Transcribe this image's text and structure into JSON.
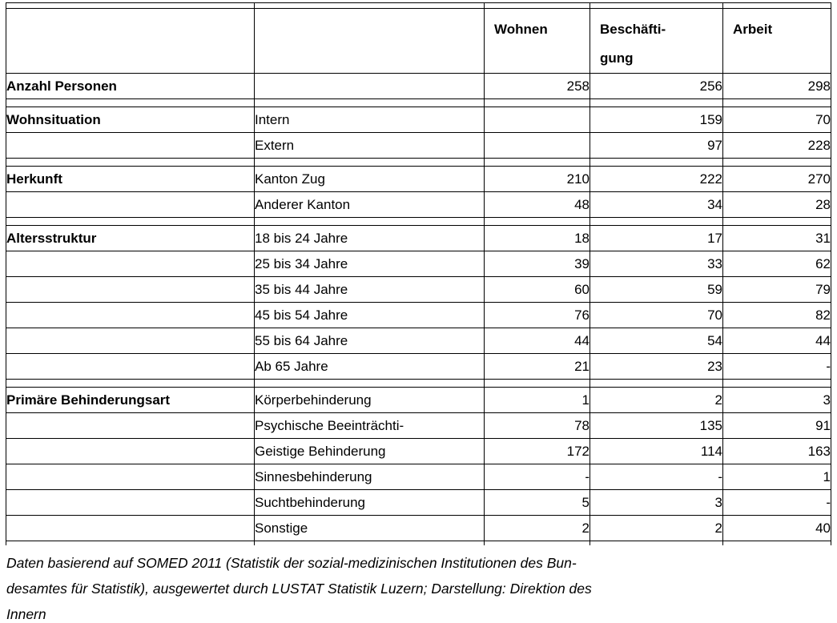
{
  "document": {
    "background_color": "#ffffff",
    "text_color": "#000000",
    "border_color": "#000000"
  },
  "table": {
    "header": {
      "col1": "",
      "col2": "",
      "col3": "Wohnen",
      "col4": "Beschäfti-\ngung",
      "col5": "Arbeit"
    },
    "rows": [
      {
        "type": "spacer-top"
      },
      {
        "type": "header"
      },
      {
        "type": "data",
        "label": "Anzahl Personen",
        "category": "",
        "wohnen": "258",
        "beschaeftigung": "256",
        "arbeit": "298"
      },
      {
        "type": "spacer"
      },
      {
        "type": "data",
        "label": "Wohnsituation",
        "category": "Intern",
        "wohnen": "",
        "beschaeftigung": "159",
        "arbeit": "70"
      },
      {
        "type": "data",
        "label": "",
        "category": "Extern",
        "wohnen": "",
        "beschaeftigung": "97",
        "arbeit": "228"
      },
      {
        "type": "spacer"
      },
      {
        "type": "data",
        "label": "Herkunft",
        "category": "Kanton Zug",
        "wohnen": "210",
        "beschaeftigung": "222",
        "arbeit": "270"
      },
      {
        "type": "data",
        "label": "",
        "category": "Anderer Kanton",
        "wohnen": "48",
        "beschaeftigung": "34",
        "arbeit": "28"
      },
      {
        "type": "spacer"
      },
      {
        "type": "data",
        "label": "Altersstruktur",
        "category": "18 bis 24 Jahre",
        "wohnen": "18",
        "beschaeftigung": "17",
        "arbeit": "31"
      },
      {
        "type": "data",
        "label": "",
        "category": "25 bis 34 Jahre",
        "wohnen": "39",
        "beschaeftigung": "33",
        "arbeit": "62"
      },
      {
        "type": "data",
        "label": "",
        "category": "35 bis 44 Jahre",
        "wohnen": "60",
        "beschaeftigung": "59",
        "arbeit": "79"
      },
      {
        "type": "data",
        "label": "",
        "category": "45 bis 54 Jahre",
        "wohnen": "76",
        "beschaeftigung": "70",
        "arbeit": "82"
      },
      {
        "type": "data",
        "label": "",
        "category": "55 bis 64 Jahre",
        "wohnen": "44",
        "beschaeftigung": "54",
        "arbeit": "44"
      },
      {
        "type": "data",
        "label": "",
        "category": "Ab 65 Jahre",
        "wohnen": "21",
        "beschaeftigung": "23",
        "arbeit": "-"
      },
      {
        "type": "spacer"
      },
      {
        "type": "data",
        "label": "Primäre Behinderungsart",
        "category": "Körperbehinderung",
        "wohnen": "1",
        "beschaeftigung": "2",
        "arbeit": "3"
      },
      {
        "type": "data",
        "label": "",
        "category": "Psychische Beeinträchti-",
        "wohnen": "78",
        "beschaeftigung": "135",
        "arbeit": "91"
      },
      {
        "type": "data",
        "label": "",
        "category": "Geistige Behinderung",
        "wohnen": "172",
        "beschaeftigung": "114",
        "arbeit": "163"
      },
      {
        "type": "data",
        "label": "",
        "category": "Sinnesbehinderung",
        "wohnen": "-",
        "beschaeftigung": "-",
        "arbeit": "1"
      },
      {
        "type": "data",
        "label": "",
        "category": "Suchtbehinderung",
        "wohnen": "5",
        "beschaeftigung": "3",
        "arbeit": "-"
      },
      {
        "type": "data",
        "label": "",
        "category": "Sonstige",
        "wohnen": "2",
        "beschaeftigung": "2",
        "arbeit": "40"
      },
      {
        "type": "spacer-open"
      }
    ]
  },
  "footer": {
    "lines": [
      "Daten basierend auf SOMED 2011 (Statistik der sozial-medizinischen Institutionen des Bun-",
      "desamtes für Statistik), ausgewertet durch LUSTAT Statistik Luzern; Darstellung: Direktion des",
      "Innern"
    ]
  }
}
